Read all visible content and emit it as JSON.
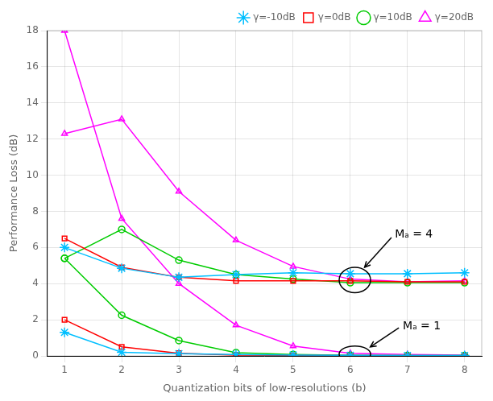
{
  "chart_data": {
    "type": "line",
    "x_label": "Quantization bits of low-resolutions (b)",
    "y_label": "Performance Loss (dB)",
    "x": [
      1,
      2,
      3,
      4,
      5,
      6,
      7,
      8
    ],
    "series": [
      {
        "name": "γ=-10dB",
        "color": "#00BFFF",
        "marker": "star",
        "Ma4": [
          6.0,
          4.85,
          4.35,
          4.5,
          4.6,
          4.55,
          4.55,
          4.6
        ],
        "Ma1": [
          1.3,
          0.2,
          0.12,
          0.08,
          0.05,
          0.03,
          0.02,
          0.02
        ]
      },
      {
        "name": "γ=0dB",
        "color": "#FF0000",
        "marker": "square",
        "Ma4": [
          6.5,
          4.9,
          4.35,
          4.15,
          4.15,
          4.15,
          4.1,
          4.1
        ],
        "Ma1": [
          2.0,
          0.5,
          0.15,
          0.05,
          0.03,
          0.02,
          0.01,
          0.01
        ]
      },
      {
        "name": "γ=10dB",
        "color": "#00CC00",
        "marker": "circle",
        "Ma4": [
          5.4,
          7.0,
          5.3,
          4.5,
          4.25,
          4.05,
          4.05,
          4.05
        ],
        "Ma1": [
          5.4,
          2.25,
          0.85,
          0.18,
          0.08,
          0.03,
          0.02,
          0.02
        ]
      },
      {
        "name": "γ=20dB",
        "color": "#FF00FF",
        "marker": "triangle",
        "Ma4": [
          12.3,
          13.1,
          9.1,
          6.4,
          4.95,
          4.25,
          4.1,
          4.15
        ],
        "Ma1": [
          18.0,
          7.6,
          4.0,
          1.7,
          0.55,
          0.15,
          0.08,
          0.05
        ]
      }
    ],
    "annotations": [
      "Mₐ = 4",
      "Mₐ = 1"
    ],
    "xlim": [
      0.7,
      8.3
    ],
    "xticks": [
      1,
      2,
      3,
      4,
      5,
      6,
      7,
      8
    ],
    "ylim": [
      0,
      18
    ],
    "yticks": [
      0,
      2,
      4,
      6,
      8,
      10,
      12,
      14,
      16,
      18
    ],
    "grid": true,
    "legend": "upper right"
  }
}
